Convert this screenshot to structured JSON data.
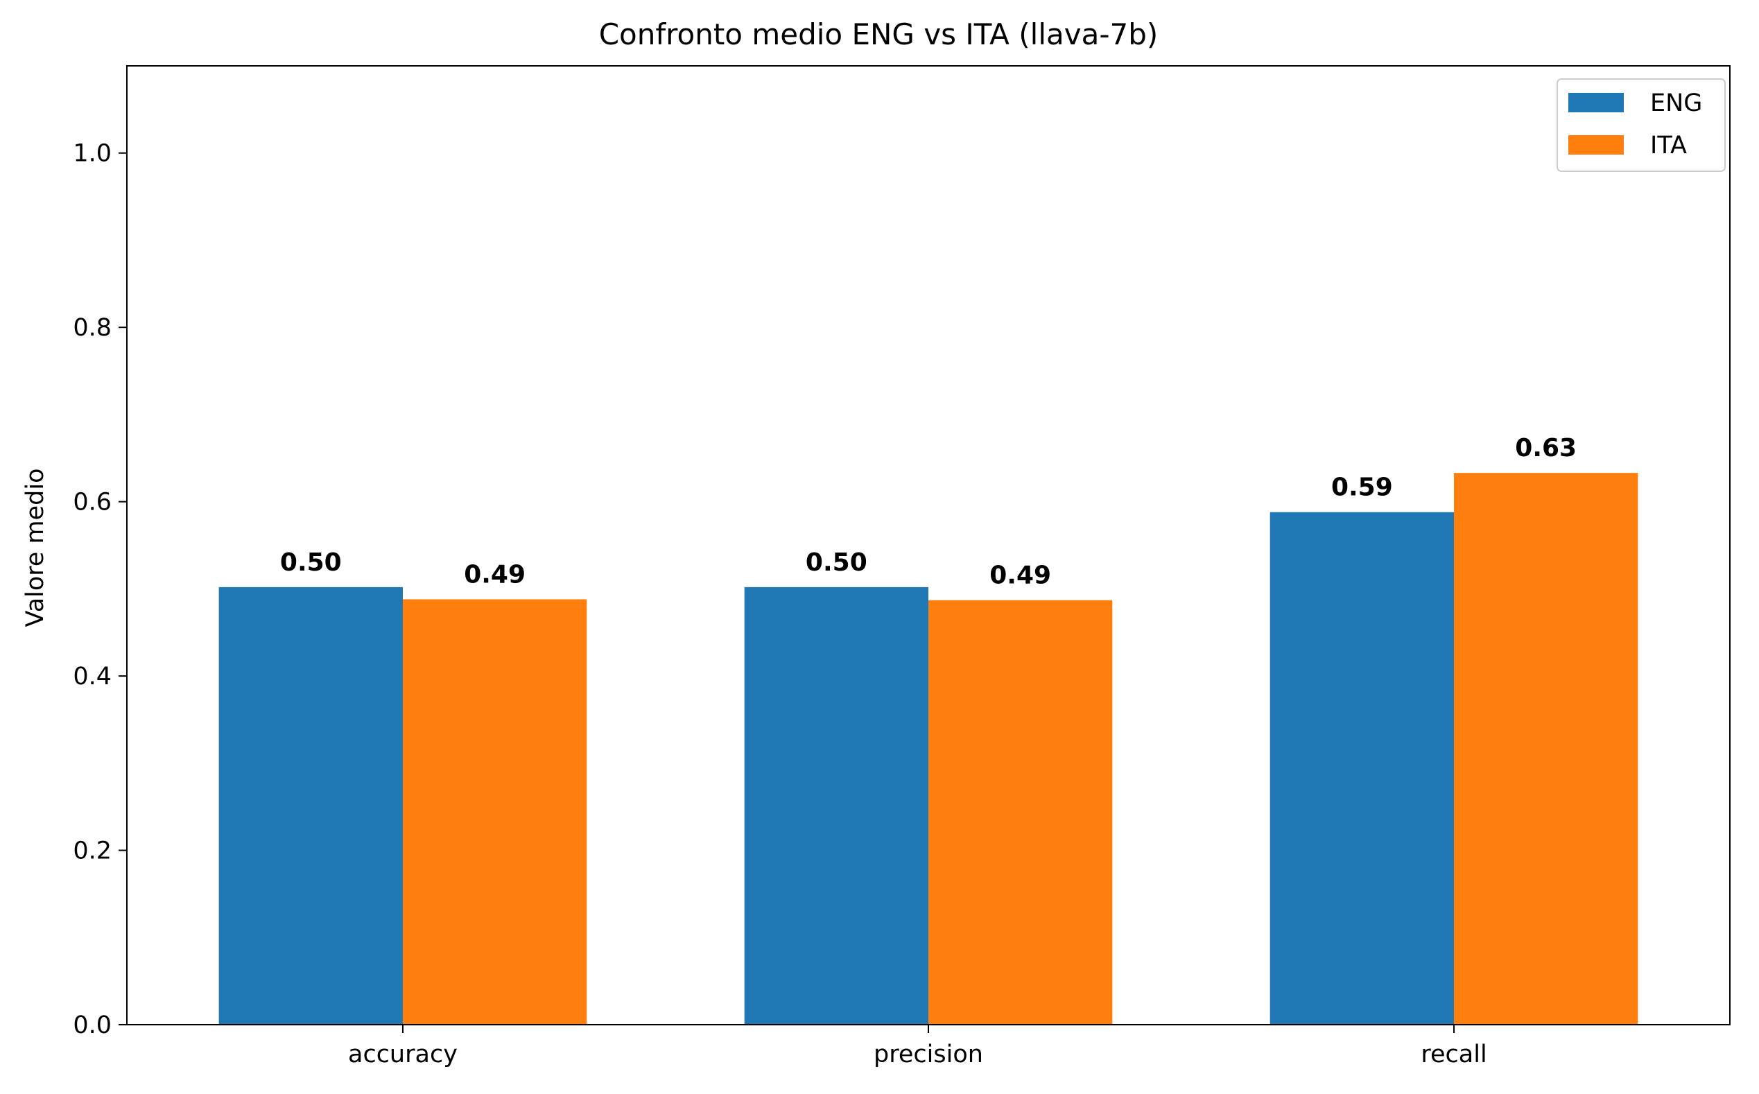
{
  "chart_data": {
    "type": "bar",
    "title": "Confronto medio ENG vs ITA (llava-7b)",
    "xlabel": "",
    "ylabel": "Valore medio",
    "categories": [
      "accuracy",
      "precision",
      "recall"
    ],
    "series": [
      {
        "name": "ENG",
        "values": [
          0.502,
          0.502,
          0.588
        ],
        "labels": [
          "0.50",
          "0.50",
          "0.59"
        ],
        "color": "#1f77b4"
      },
      {
        "name": "ITA",
        "values": [
          0.488,
          0.487,
          0.633
        ],
        "labels": [
          "0.49",
          "0.49",
          "0.63"
        ],
        "color": "#ff7f0e"
      }
    ],
    "ylim": [
      0,
      1.1
    ],
    "yticks": [
      "0.0",
      "0.2",
      "0.4",
      "0.6",
      "0.8",
      "1.0"
    ],
    "grid": false,
    "legend_position": "top-right"
  }
}
